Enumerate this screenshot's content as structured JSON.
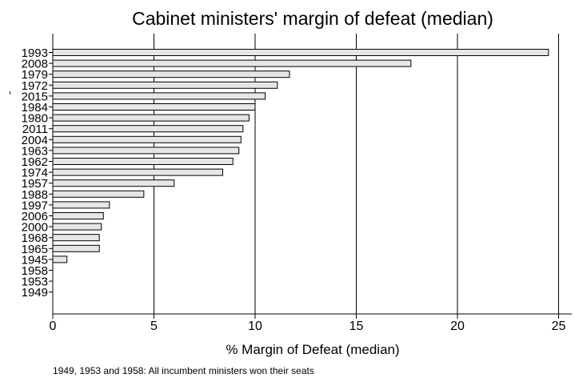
{
  "chart_data": {
    "type": "bar",
    "orientation": "horizontal",
    "title": "Cabinet ministers' margin of defeat (median)",
    "xlabel": "% Margin of Defeat (median)",
    "ylabel": "",
    "xlim": [
      0,
      25.5
    ],
    "xticks": [
      "0",
      "5",
      "10",
      "15",
      "20",
      "25"
    ],
    "grid": "vertical",
    "categories": [
      "1993",
      "2008",
      "1979",
      "1972",
      "2015",
      "1984",
      "1980",
      "2011",
      "2004",
      "1963",
      "1962",
      "1974",
      "1957",
      "1988",
      "1997",
      "2006",
      "2000",
      "1968",
      "1965",
      "1945",
      "1958",
      "1953",
      "1949"
    ],
    "values": [
      24.5,
      17.7,
      11.7,
      11.1,
      10.5,
      10.0,
      9.7,
      9.4,
      9.3,
      9.2,
      8.9,
      8.4,
      6.0,
      4.5,
      2.8,
      2.5,
      2.4,
      2.3,
      2.3,
      0.7,
      null,
      null,
      null
    ],
    "note": "1949, 1953 and 1958: All incumbent ministers won their seats",
    "stray_mark": "‘"
  }
}
